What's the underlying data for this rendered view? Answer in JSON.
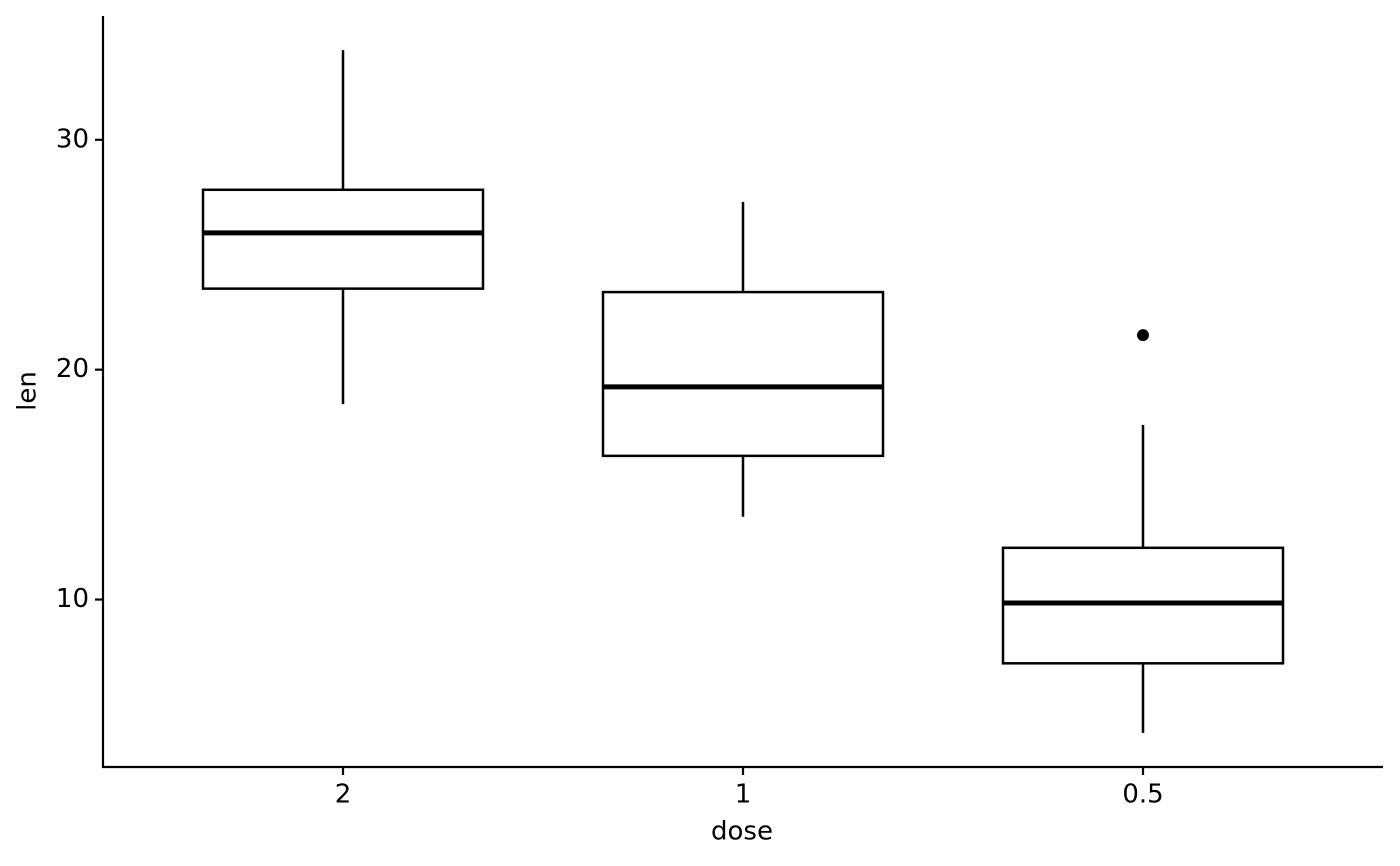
{
  "chart_data": {
    "type": "box",
    "x_label": "dose",
    "y_label": "len",
    "categories": [
      "2",
      "1",
      "0.5"
    ],
    "boxes": [
      {
        "low": 18.5,
        "q1": 23.525,
        "median": 25.95,
        "q3": 27.825,
        "high": 33.9,
        "outliers": []
      },
      {
        "low": 13.6,
        "q1": 16.25,
        "median": 19.25,
        "q3": 23.375,
        "high": 27.3,
        "outliers": []
      },
      {
        "low": 4.2,
        "q1": 7.225,
        "median": 9.85,
        "q3": 12.25,
        "high": 17.6,
        "outliers": [
          21.5
        ]
      }
    ],
    "color": "#000000",
    "ylim": [
      2.715,
      35.385
    ],
    "yticks": [
      10,
      20,
      30
    ],
    "grid": false
  }
}
